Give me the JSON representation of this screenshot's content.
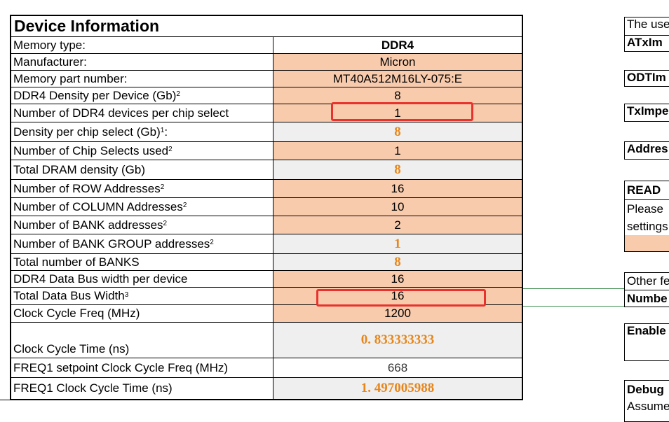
{
  "device_info": {
    "title": "Device Information",
    "rows": [
      {
        "label": "Memory type:",
        "sup": "",
        "value": "DDR4",
        "kind": "bold"
      },
      {
        "label": "Manufacturer:",
        "sup": "",
        "value": "Micron",
        "kind": "input"
      },
      {
        "label": "Memory part number:",
        "sup": "",
        "value": "MT40A512M16LY-075:E",
        "kind": "input"
      },
      {
        "label": "DDR4 Density per Device (Gb)",
        "sup": "2",
        "value": "8",
        "kind": "input"
      },
      {
        "label": "Number of DDR4 devices per chip select",
        "sup": "",
        "value": "1",
        "kind": "input"
      },
      {
        "label": "Density per chip select (Gb)",
        "sup": "1",
        "suffix": ":",
        "value": "8",
        "kind": "calc"
      },
      {
        "label": "Number of Chip Selects used",
        "sup": "2",
        "value": "1",
        "kind": "input"
      },
      {
        "label": "Total DRAM density (Gb)",
        "sup": "",
        "value": "8",
        "kind": "calc"
      },
      {
        "label": "Number of ROW Addresses",
        "sup": "2",
        "value": "16",
        "kind": "input"
      },
      {
        "label": "Number of COLUMN Addresses",
        "sup": "2",
        "value": "10",
        "kind": "input"
      },
      {
        "label": "Number of BANK addresses",
        "sup": "2",
        "value": "2",
        "kind": "input"
      },
      {
        "label": "Number of BANK GROUP addresses",
        "sup": "2",
        "value": "1",
        "kind": "calc"
      },
      {
        "label": "Total number of BANKS",
        "sup": "",
        "value": "8",
        "kind": "calc"
      },
      {
        "label": "DDR4 Data Bus width per device",
        "sup": "",
        "value": "16",
        "kind": "input"
      },
      {
        "label": "Total Data Bus Width",
        "sup": "3",
        "value": "16",
        "kind": "input"
      },
      {
        "label": "Clock Cycle Freq (MHz)",
        "sup": "",
        "value": "1200",
        "kind": "input"
      },
      {
        "label": "Clock Cycle Time (ns)",
        "sup": "",
        "value": "0. 833333333",
        "kind": "calc"
      },
      {
        "label": "FREQ1 setpoint Clock Cycle Freq (MHz)",
        "sup": "",
        "value": "668",
        "kind": "calc-gray"
      },
      {
        "label": "FREQ1 Clock Cycle Time (ns)",
        "sup": "",
        "value": "1. 497005988",
        "kind": "calc"
      }
    ]
  },
  "right_panel": {
    "intro": "The use",
    "atx": "ATxIm",
    "odt": "ODTIm",
    "tx": "TxImpe",
    "addr": "Addres",
    "read": "READ ",
    "please": "Please",
    "settings": "settings",
    "other": "Other fe",
    "number": "Numbe",
    "enable": "Enable",
    "debug": "Debug",
    "assume": "Assume"
  },
  "colors": {
    "input_fill": "#f8cbad",
    "calc_fill": "#efefef",
    "calc_text": "#e6861c",
    "highlight": "#e8322d"
  }
}
